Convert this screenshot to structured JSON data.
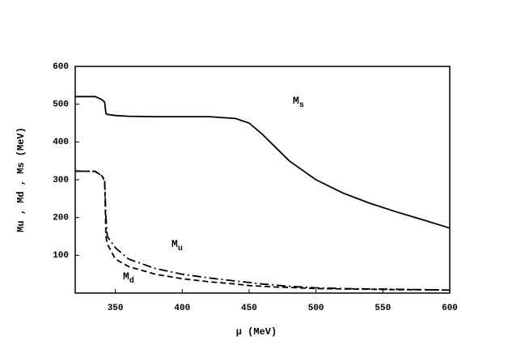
{
  "chart_data": {
    "type": "line",
    "x_label": "μ (MeV)",
    "y_label": "Mu , Md , Ms  (MeV)",
    "x": [
      320,
      335,
      340,
      342,
      343,
      344,
      350,
      360,
      380,
      400,
      420,
      440,
      450,
      460,
      470,
      480,
      500,
      520,
      540,
      560,
      580,
      600
    ],
    "series": [
      {
        "name": "Ms",
        "color": "#000000",
        "style": "solid",
        "values": [
          520,
          520,
          512,
          505,
          475,
          473,
          470,
          468,
          467,
          467,
          467,
          462,
          450,
          420,
          385,
          350,
          300,
          265,
          238,
          215,
          194,
          172
        ]
      },
      {
        "name": "Mu",
        "color": "#000000",
        "style": "dashdot",
        "values": [
          323,
          322,
          310,
          300,
          200,
          150,
          120,
          90,
          65,
          50,
          40,
          32,
          28,
          24,
          21,
          18,
          14,
          12,
          11,
          10,
          9,
          8
        ]
      },
      {
        "name": "Md",
        "color": "#000000",
        "style": "dashed",
        "values": [
          323,
          322,
          310,
          295,
          150,
          130,
          90,
          70,
          50,
          38,
          30,
          24,
          20,
          18,
          16,
          15,
          12,
          11,
          10,
          9,
          9,
          8
        ]
      }
    ],
    "xlim": [
      320,
      600
    ],
    "ylim": [
      0,
      600
    ],
    "xticks": [
      350,
      400,
      450,
      500,
      550,
      600
    ],
    "yticks": [
      100,
      200,
      300,
      400,
      500,
      600
    ],
    "grid": false
  }
}
